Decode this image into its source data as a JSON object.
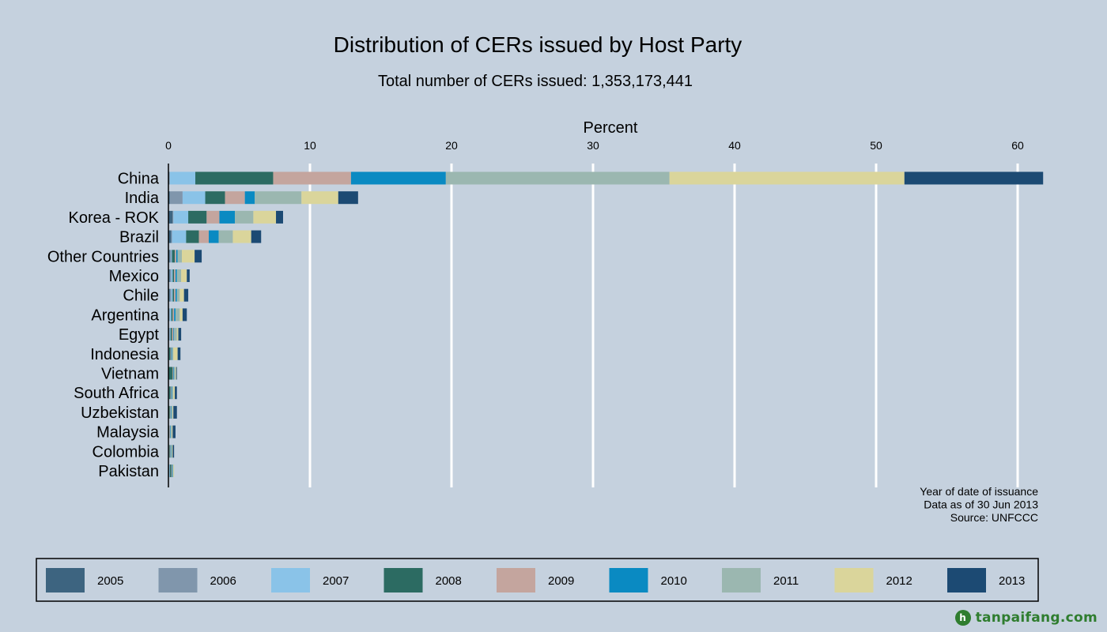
{
  "chart_data": {
    "type": "bar",
    "orientation": "horizontal",
    "stacked": true,
    "title": "Distribution of CERs issued by Host Party",
    "subtitle": "Total number of CERs issued: 1,353,173,441",
    "xlabel": "Percent",
    "xlim": [
      0,
      62
    ],
    "xticks": [
      0,
      10,
      20,
      30,
      40,
      50,
      60
    ],
    "grid": true,
    "legend_position": "bottom",
    "notes": [
      "Year of date of issuance",
      "Data as of 30 Jun 2013",
      "Source: UNFCCC"
    ],
    "categories": [
      "China",
      "India",
      "Korea - ROK",
      "Brazil",
      "Other Countries",
      "Mexico",
      "Chile",
      "Argentina",
      "Egypt",
      "Indonesia",
      "Vietnam",
      "South Africa",
      "Uzbekistan",
      "Malaysia",
      "Colombia",
      "Pakistan"
    ],
    "series": [
      {
        "name": "2005",
        "color": "#3d6480",
        "values": [
          0.05,
          0.1,
          0.3,
          0.2,
          0.1,
          0.1,
          0.1,
          0.05,
          0.05,
          0,
          0,
          0,
          0,
          0,
          0,
          0
        ]
      },
      {
        "name": "2006",
        "color": "#8096ac",
        "values": [
          0.05,
          0.9,
          0.05,
          0.05,
          0.1,
          0.1,
          0.1,
          0.05,
          0.05,
          0,
          0,
          0,
          0,
          0,
          0,
          0.05
        ]
      },
      {
        "name": "2007",
        "color": "#8ac3e8",
        "values": [
          1.8,
          1.6,
          1.05,
          1.0,
          0.05,
          0.1,
          0.1,
          0.1,
          0.05,
          0.05,
          0,
          0.05,
          0,
          0,
          0.05,
          0.05
        ]
      },
      {
        "name": "2008",
        "color": "#2c6b62",
        "values": [
          5.5,
          1.4,
          1.3,
          0.9,
          0.2,
          0.1,
          0.1,
          0.1,
          0.1,
          0.1,
          0.3,
          0.1,
          0.1,
          0.05,
          0.05,
          0.1
        ]
      },
      {
        "name": "2009",
        "color": "#c4a59e",
        "values": [
          5.5,
          1.4,
          0.9,
          0.7,
          0.1,
          0.1,
          0.1,
          0.1,
          0.1,
          0.05,
          0.05,
          0.05,
          0.05,
          0.05,
          0.05,
          0.05
        ]
      },
      {
        "name": "2010",
        "color": "#0a8ac2",
        "values": [
          6.7,
          0.7,
          1.1,
          0.7,
          0.1,
          0.1,
          0.1,
          0.1,
          0.05,
          0.05,
          0.05,
          0.05,
          0.05,
          0.05,
          0.05,
          0.05
        ]
      },
      {
        "name": "2011",
        "color": "#9bb7b0",
        "values": [
          15.8,
          3.3,
          1.3,
          1.0,
          0.3,
          0.3,
          0.2,
          0.3,
          0.2,
          0.1,
          0.1,
          0.1,
          0.1,
          0.1,
          0.05,
          0.05
        ]
      },
      {
        "name": "2012",
        "color": "#dad59b",
        "values": [
          16.6,
          2.6,
          1.6,
          1.3,
          0.9,
          0.4,
          0.3,
          0.2,
          0.1,
          0.3,
          0.05,
          0.1,
          0.05,
          0.05,
          0.05,
          0.05
        ]
      },
      {
        "name": "2013",
        "color": "#1c4a73",
        "values": [
          9.8,
          1.4,
          0.5,
          0.7,
          0.5,
          0.2,
          0.3,
          0.3,
          0.2,
          0.2,
          0.05,
          0.15,
          0.25,
          0.2,
          0.1,
          0
        ]
      }
    ]
  },
  "watermark": {
    "logo_letter": "h",
    "text": "tanpaifang.com"
  }
}
